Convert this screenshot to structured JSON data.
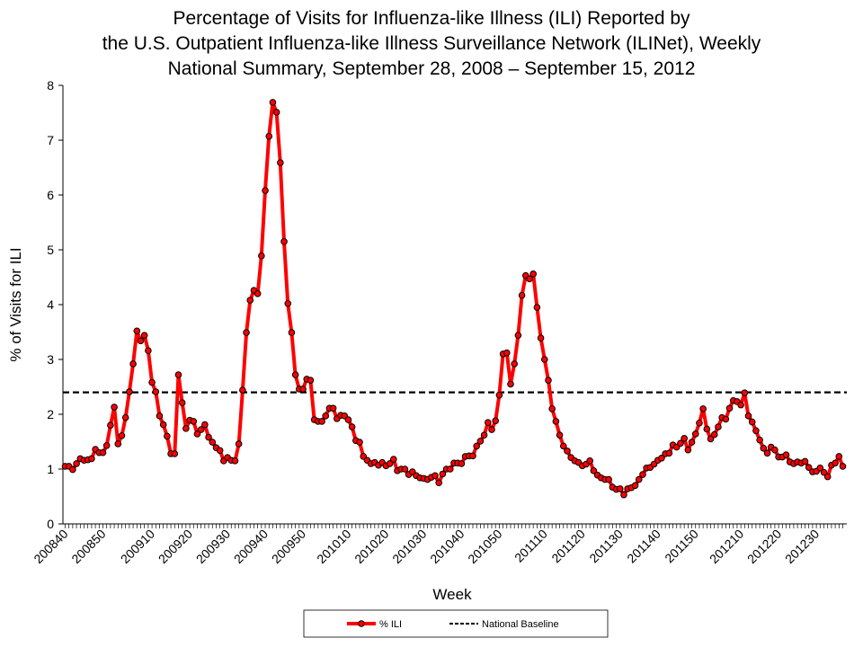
{
  "chart_data": {
    "type": "line",
    "title": [
      "Percentage of Visits for Influenza-like Illness (ILI) Reported by",
      "the U.S. Outpatient Influenza-like Illness Surveillance Network (ILINet),  Weekly",
      "National Summary, September 28, 2008 – September 15, 2012"
    ],
    "xlabel": "Week",
    "ylabel": "% of Visits for ILI",
    "ylim": [
      0,
      8
    ],
    "yticks": [
      0,
      1,
      2,
      3,
      4,
      5,
      6,
      7,
      8
    ],
    "first_week": "200840",
    "xtick_labels": [
      "200840",
      "200850",
      "200910",
      "200920",
      "200930",
      "200940",
      "200950",
      "201010",
      "201020",
      "201030",
      "201040",
      "201050",
      "201110",
      "201120",
      "201130",
      "201140",
      "201150",
      "201210",
      "201220",
      "201230"
    ],
    "grid": false,
    "legend_placement": "bottom",
    "series": [
      {
        "name": "% ILI",
        "color": "#ff0000",
        "marker": "circle",
        "values": [
          1.05,
          1.05,
          0.99,
          1.1,
          1.19,
          1.16,
          1.17,
          1.19,
          1.36,
          1.3,
          1.3,
          1.43,
          1.8,
          2.13,
          1.46,
          1.61,
          1.94,
          2.41,
          2.92,
          3.52,
          3.34,
          3.44,
          3.16,
          2.58,
          2.41,
          1.97,
          1.81,
          1.6,
          1.28,
          1.28,
          2.72,
          2.21,
          1.74,
          1.89,
          1.87,
          1.64,
          1.72,
          1.81,
          1.58,
          1.49,
          1.39,
          1.34,
          1.15,
          1.21,
          1.16,
          1.15,
          1.46,
          2.44,
          3.49,
          4.08,
          4.26,
          4.2,
          4.89,
          6.08,
          7.07,
          7.69,
          7.51,
          6.59,
          5.15,
          4.02,
          3.49,
          2.72,
          2.46,
          2.46,
          2.64,
          2.62,
          1.9,
          1.87,
          1.87,
          1.97,
          2.11,
          2.11,
          1.92,
          1.98,
          1.97,
          1.9,
          1.77,
          1.52,
          1.49,
          1.23,
          1.16,
          1.1,
          1.12,
          1.07,
          1.12,
          1.06,
          1.1,
          1.18,
          0.97,
          1.0,
          1.0,
          0.9,
          0.95,
          0.88,
          0.84,
          0.83,
          0.81,
          0.85,
          0.88,
          0.75,
          0.91,
          1.0,
          1.0,
          1.11,
          1.11,
          1.1,
          1.23,
          1.24,
          1.24,
          1.42,
          1.51,
          1.62,
          1.85,
          1.72,
          1.88,
          2.35,
          3.1,
          3.12,
          2.55,
          2.92,
          3.44,
          4.17,
          4.53,
          4.47,
          4.56,
          3.95,
          3.39,
          3.0,
          2.62,
          2.1,
          1.87,
          1.62,
          1.42,
          1.33,
          1.21,
          1.15,
          1.12,
          1.06,
          1.09,
          1.15,
          0.97,
          0.89,
          0.84,
          0.81,
          0.81,
          0.67,
          0.63,
          0.64,
          0.53,
          0.64,
          0.66,
          0.7,
          0.81,
          0.9,
          1.02,
          1.03,
          1.09,
          1.16,
          1.2,
          1.28,
          1.29,
          1.44,
          1.4,
          1.47,
          1.56,
          1.35,
          1.49,
          1.64,
          1.84,
          2.1,
          1.73,
          1.55,
          1.63,
          1.77,
          1.94,
          1.91,
          2.11,
          2.25,
          2.23,
          2.17,
          2.39,
          1.97,
          1.86,
          1.7,
          1.53,
          1.38,
          1.29,
          1.4,
          1.35,
          1.22,
          1.22,
          1.26,
          1.13,
          1.1,
          1.13,
          1.11,
          1.14,
          1.03,
          0.95,
          0.96,
          1.02,
          0.94,
          0.86,
          1.07,
          1.11,
          1.23,
          1.05
        ]
      },
      {
        "name": "National Baseline",
        "color": "#000000",
        "style": "dashed",
        "value": 2.4
      }
    ]
  }
}
